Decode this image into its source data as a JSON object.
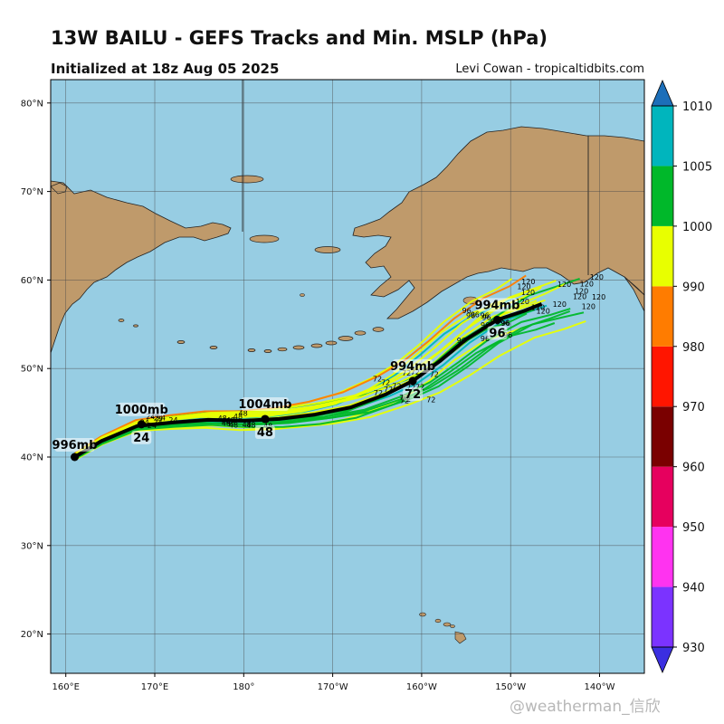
{
  "title": "13W BAILU - GEFS Tracks and Min. MSLP (hPa)",
  "subtitle": "Initialized at 18z Aug 05 2025",
  "credit": "Levi Cowan - tropicaltidbits.com",
  "watermark": "@weatherman_信欣",
  "colors": {
    "ocean": "#97cde3",
    "land": "#bf9a6b",
    "track_mean": "#000000"
  },
  "axes": {
    "lat_ticks": [
      "20°N",
      "30°N",
      "40°N",
      "50°N",
      "60°N",
      "70°N",
      "80°N"
    ],
    "lon_ticks": [
      "160°E",
      "170°E",
      "180°",
      "170°W",
      "160°W",
      "150°W",
      "140°W"
    ]
  },
  "colorbar": {
    "levels": [
      930,
      940,
      950,
      960,
      970,
      980,
      990,
      1000,
      1005,
      1010
    ],
    "colors": [
      "#3b2fe0",
      "#7b33ff",
      "#ff33f0",
      "#e6005e",
      "#7a0000",
      "#ff1500",
      "#ff7c00",
      "#e8ff00",
      "#00b82a",
      "#00b5bd",
      "#1c6fb9"
    ]
  },
  "mean_track": {
    "points": [
      {
        "lon_e": 161.0,
        "lat": 40.0
      },
      {
        "lon_e": 164.0,
        "lat": 41.8
      },
      {
        "lon_e": 168.0,
        "lat": 43.5
      },
      {
        "lon_e": 172.0,
        "lat": 43.9
      },
      {
        "lon_e": 176.0,
        "lat": 44.2
      },
      {
        "lon_e": 180.0,
        "lat": 44.1
      },
      {
        "lon_e": 184.0,
        "lat": 44.3
      },
      {
        "lon_e": 188.0,
        "lat": 44.8
      },
      {
        "lon_e": 192.0,
        "lat": 45.6
      },
      {
        "lon_e": 196.0,
        "lat": 47.1
      },
      {
        "lon_e": 199.0,
        "lat": 48.6
      },
      {
        "lon_e": 202.0,
        "lat": 50.8
      },
      {
        "lon_e": 205.0,
        "lat": 53.3
      },
      {
        "lon_e": 208.5,
        "lat": 55.5
      },
      {
        "lon_e": 211.5,
        "lat": 56.5
      },
      {
        "lon_e": 213.5,
        "lat": 57.3
      }
    ],
    "labels": [
      {
        "pressure": "996mb",
        "hour": "",
        "lon_e": 161.0,
        "lat": 40.0
      },
      {
        "pressure": "1000mb",
        "hour": "24",
        "lon_e": 168.5,
        "lat": 43.7
      },
      {
        "pressure": "1004mb",
        "hour": "48",
        "lon_e": 182.4,
        "lat": 44.3
      },
      {
        "pressure": "994mb",
        "hour": "72",
        "lon_e": 199.0,
        "lat": 48.6
      },
      {
        "pressure": "994mb",
        "hour": "96",
        "lon_e": 208.5,
        "lat": 55.5
      }
    ]
  },
  "member_hour_labels": {
    "hour_24": {
      "text": "24",
      "count": 8
    },
    "hour_48": {
      "text": "48",
      "count": 12
    },
    "hour_72": {
      "text": "72",
      "count": 14
    },
    "hour_96": {
      "text": "96",
      "count": 12
    },
    "hour_120": {
      "text": "120",
      "count": 14
    }
  }
}
